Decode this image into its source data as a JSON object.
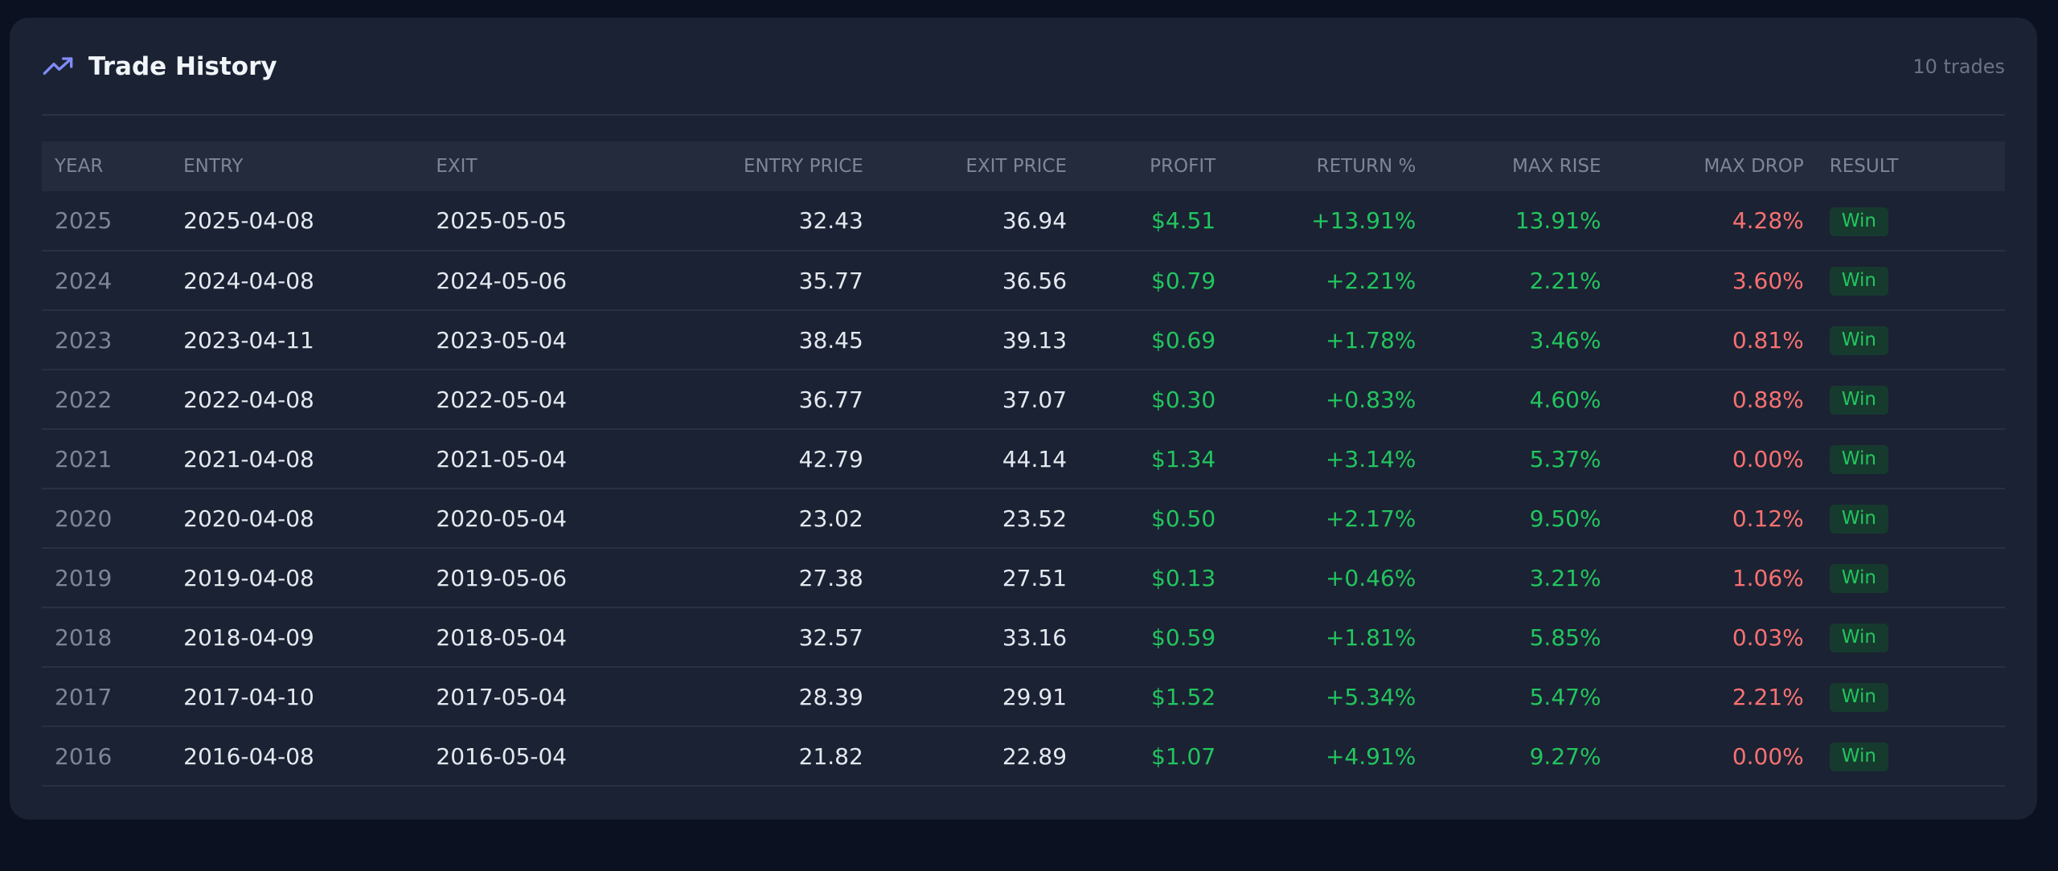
{
  "header": {
    "title": "Trade History",
    "count_label": "10 trades",
    "icon": "trending-up-icon",
    "accent_color": "#818cf8"
  },
  "colors": {
    "positive": "#22c55e",
    "negative": "#f87171"
  },
  "table": {
    "columns": [
      "YEAR",
      "ENTRY",
      "EXIT",
      "ENTRY PRICE",
      "EXIT PRICE",
      "PROFIT",
      "RETURN %",
      "MAX RISE",
      "MAX DROP",
      "RESULT"
    ],
    "rows": [
      {
        "year": "2025",
        "entry": "2025-04-08",
        "exit": "2025-05-05",
        "entry_price": "32.43",
        "exit_price": "36.94",
        "profit": "$4.51",
        "return_pct": "+13.91%",
        "max_rise": "13.91%",
        "max_drop": "4.28%",
        "result": "Win"
      },
      {
        "year": "2024",
        "entry": "2024-04-08",
        "exit": "2024-05-06",
        "entry_price": "35.77",
        "exit_price": "36.56",
        "profit": "$0.79",
        "return_pct": "+2.21%",
        "max_rise": "2.21%",
        "max_drop": "3.60%",
        "result": "Win"
      },
      {
        "year": "2023",
        "entry": "2023-04-11",
        "exit": "2023-05-04",
        "entry_price": "38.45",
        "exit_price": "39.13",
        "profit": "$0.69",
        "return_pct": "+1.78%",
        "max_rise": "3.46%",
        "max_drop": "0.81%",
        "result": "Win"
      },
      {
        "year": "2022",
        "entry": "2022-04-08",
        "exit": "2022-05-04",
        "entry_price": "36.77",
        "exit_price": "37.07",
        "profit": "$0.30",
        "return_pct": "+0.83%",
        "max_rise": "4.60%",
        "max_drop": "0.88%",
        "result": "Win"
      },
      {
        "year": "2021",
        "entry": "2021-04-08",
        "exit": "2021-05-04",
        "entry_price": "42.79",
        "exit_price": "44.14",
        "profit": "$1.34",
        "return_pct": "+3.14%",
        "max_rise": "5.37%",
        "max_drop": "0.00%",
        "result": "Win"
      },
      {
        "year": "2020",
        "entry": "2020-04-08",
        "exit": "2020-05-04",
        "entry_price": "23.02",
        "exit_price": "23.52",
        "profit": "$0.50",
        "return_pct": "+2.17%",
        "max_rise": "9.50%",
        "max_drop": "0.12%",
        "result": "Win"
      },
      {
        "year": "2019",
        "entry": "2019-04-08",
        "exit": "2019-05-06",
        "entry_price": "27.38",
        "exit_price": "27.51",
        "profit": "$0.13",
        "return_pct": "+0.46%",
        "max_rise": "3.21%",
        "max_drop": "1.06%",
        "result": "Win"
      },
      {
        "year": "2018",
        "entry": "2018-04-09",
        "exit": "2018-05-04",
        "entry_price": "32.57",
        "exit_price": "33.16",
        "profit": "$0.59",
        "return_pct": "+1.81%",
        "max_rise": "5.85%",
        "max_drop": "0.03%",
        "result": "Win"
      },
      {
        "year": "2017",
        "entry": "2017-04-10",
        "exit": "2017-05-04",
        "entry_price": "28.39",
        "exit_price": "29.91",
        "profit": "$1.52",
        "return_pct": "+5.34%",
        "max_rise": "5.47%",
        "max_drop": "2.21%",
        "result": "Win"
      },
      {
        "year": "2016",
        "entry": "2016-04-08",
        "exit": "2016-05-04",
        "entry_price": "21.82",
        "exit_price": "22.89",
        "profit": "$1.07",
        "return_pct": "+4.91%",
        "max_rise": "9.27%",
        "max_drop": "0.00%",
        "result": "Win"
      }
    ]
  }
}
